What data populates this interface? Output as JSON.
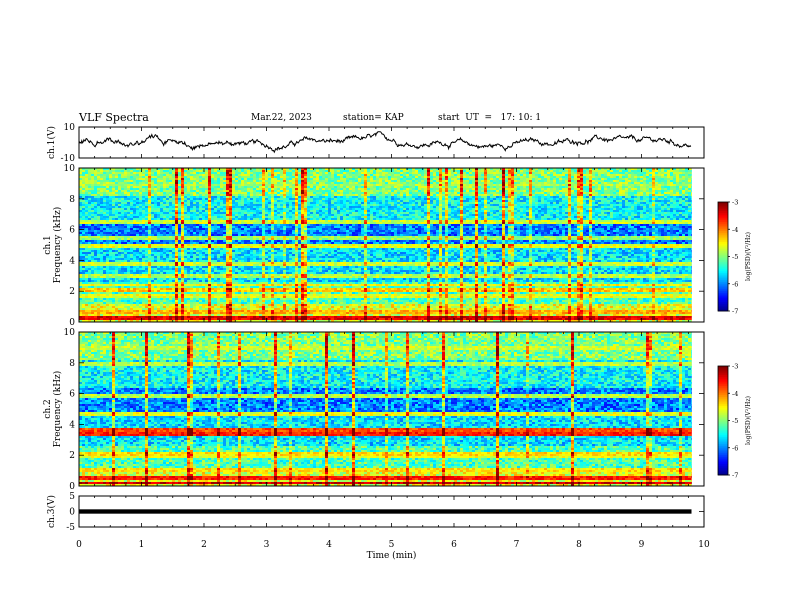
{
  "header": {
    "title": "VLF Spectra",
    "date": "Mar.22, 2023",
    "station": "station= KAP",
    "start": "start  UT  =   17: 10: 1"
  },
  "chart_data": [
    {
      "type": "line",
      "name": "ch1-waveform",
      "ylabel": "ch.1(V)",
      "ylim": [
        -10,
        10
      ],
      "yticks": [
        "10",
        "-10"
      ],
      "xlim": [
        0,
        10
      ],
      "note_values": "trace hovers near 0 V with fluctuations of roughly -4 to +4 V; ends at about 9.8 min",
      "x_end": 9.8
    },
    {
      "type": "heatmap",
      "name": "ch1-spectrogram",
      "ylabel": "ch.1",
      "ylabel2": "Frequency (kHz)",
      "ylim": [
        0,
        10
      ],
      "yticks": [
        "0",
        "2",
        "4",
        "6",
        "8",
        "10"
      ],
      "xlim": [
        0,
        10
      ],
      "x_end": 9.8,
      "colorbar": {
        "label": "log(PSD)(V²/Hz)",
        "range": [
          -7,
          -3
        ],
        "ticks": [
          "-3",
          "-4",
          "-5",
          "-6",
          "-7"
        ]
      },
      "bands_khz": [
        {
          "f": 0.3,
          "level": -3.4
        },
        {
          "f": 0.7,
          "level": -4.2
        },
        {
          "f": 1.7,
          "level": -4.6
        },
        {
          "f": 2.1,
          "level": -4.3
        },
        {
          "f": 2.4,
          "level": -4.5
        },
        {
          "f": 3.0,
          "level": -4.8
        },
        {
          "f": 3.8,
          "level": -4.7
        },
        {
          "f": 4.9,
          "level": -4.6
        },
        {
          "f": 5.5,
          "level": -4.9
        },
        {
          "f": 6.5,
          "level": -4.7
        },
        {
          "f": 8.9,
          "level": -4.8
        }
      ]
    },
    {
      "type": "heatmap",
      "name": "ch2-spectrogram",
      "ylabel": "ch.2",
      "ylabel2": "Frequency (kHz)",
      "ylim": [
        0,
        10
      ],
      "yticks": [
        "0",
        "2",
        "4",
        "6",
        "8",
        "10"
      ],
      "xlim": [
        0,
        10
      ],
      "x_end": 9.8,
      "colorbar": {
        "label": "log(PSD)(V²/Hz)",
        "range": [
          -7,
          -3
        ],
        "ticks": [
          "-3",
          "-4",
          "-5",
          "-6",
          "-7"
        ]
      },
      "bands_khz": [
        {
          "f": 0.2,
          "level": -3.3
        },
        {
          "f": 0.5,
          "level": -3.6
        },
        {
          "f": 1.0,
          "level": -4.4
        },
        {
          "f": 1.9,
          "level": -4.6
        },
        {
          "f": 2.1,
          "level": -4.4
        },
        {
          "f": 3.4,
          "level": -3.6
        },
        {
          "f": 3.6,
          "level": -3.8
        },
        {
          "f": 4.7,
          "level": -4.6
        },
        {
          "f": 5.8,
          "level": -4.8
        },
        {
          "f": 7.9,
          "level": -4.8
        },
        {
          "f": 9.0,
          "level": -4.7
        }
      ]
    },
    {
      "type": "line",
      "name": "ch3-waveform",
      "ylabel": "ch.3(V)",
      "ylim": [
        -5,
        5
      ],
      "yticks": [
        "5",
        "0",
        "-5"
      ],
      "xlim": [
        0,
        10
      ],
      "x_end": 9.8,
      "note_values": "dense rapid oscillation filling about -0.7 to +0.7 V",
      "amplitude": 0.7
    }
  ],
  "xaxis": {
    "label": "Time (min)",
    "ticks": [
      "0",
      "1",
      "2",
      "3",
      "4",
      "5",
      "6",
      "7",
      "8",
      "9",
      "10"
    ]
  }
}
